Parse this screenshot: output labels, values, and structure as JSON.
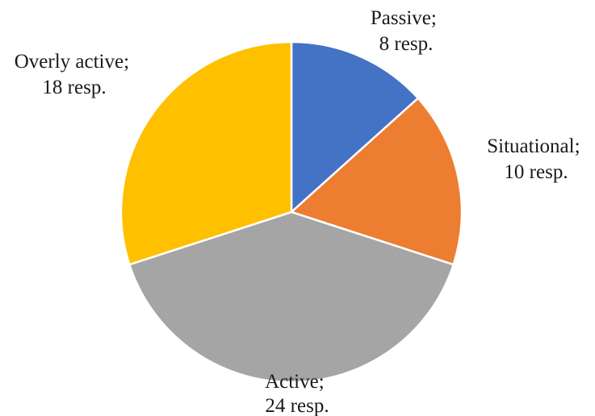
{
  "chart_data": {
    "type": "pie",
    "start_angle_deg": 0,
    "direction": "clockwise",
    "slices": [
      {
        "name": "Passive",
        "value": 8,
        "value_label": "8 resp.",
        "color": "#4472C4"
      },
      {
        "name": "Situational",
        "value": 10,
        "value_label": "10 resp.",
        "color": "#ED7D31"
      },
      {
        "name": "Active",
        "value": 24,
        "value_label": "24 resp.",
        "color": "#A5A5A5"
      },
      {
        "name": "Overly active",
        "value": 18,
        "value_label": "18 resp.",
        "color": "#FFC000"
      }
    ]
  }
}
